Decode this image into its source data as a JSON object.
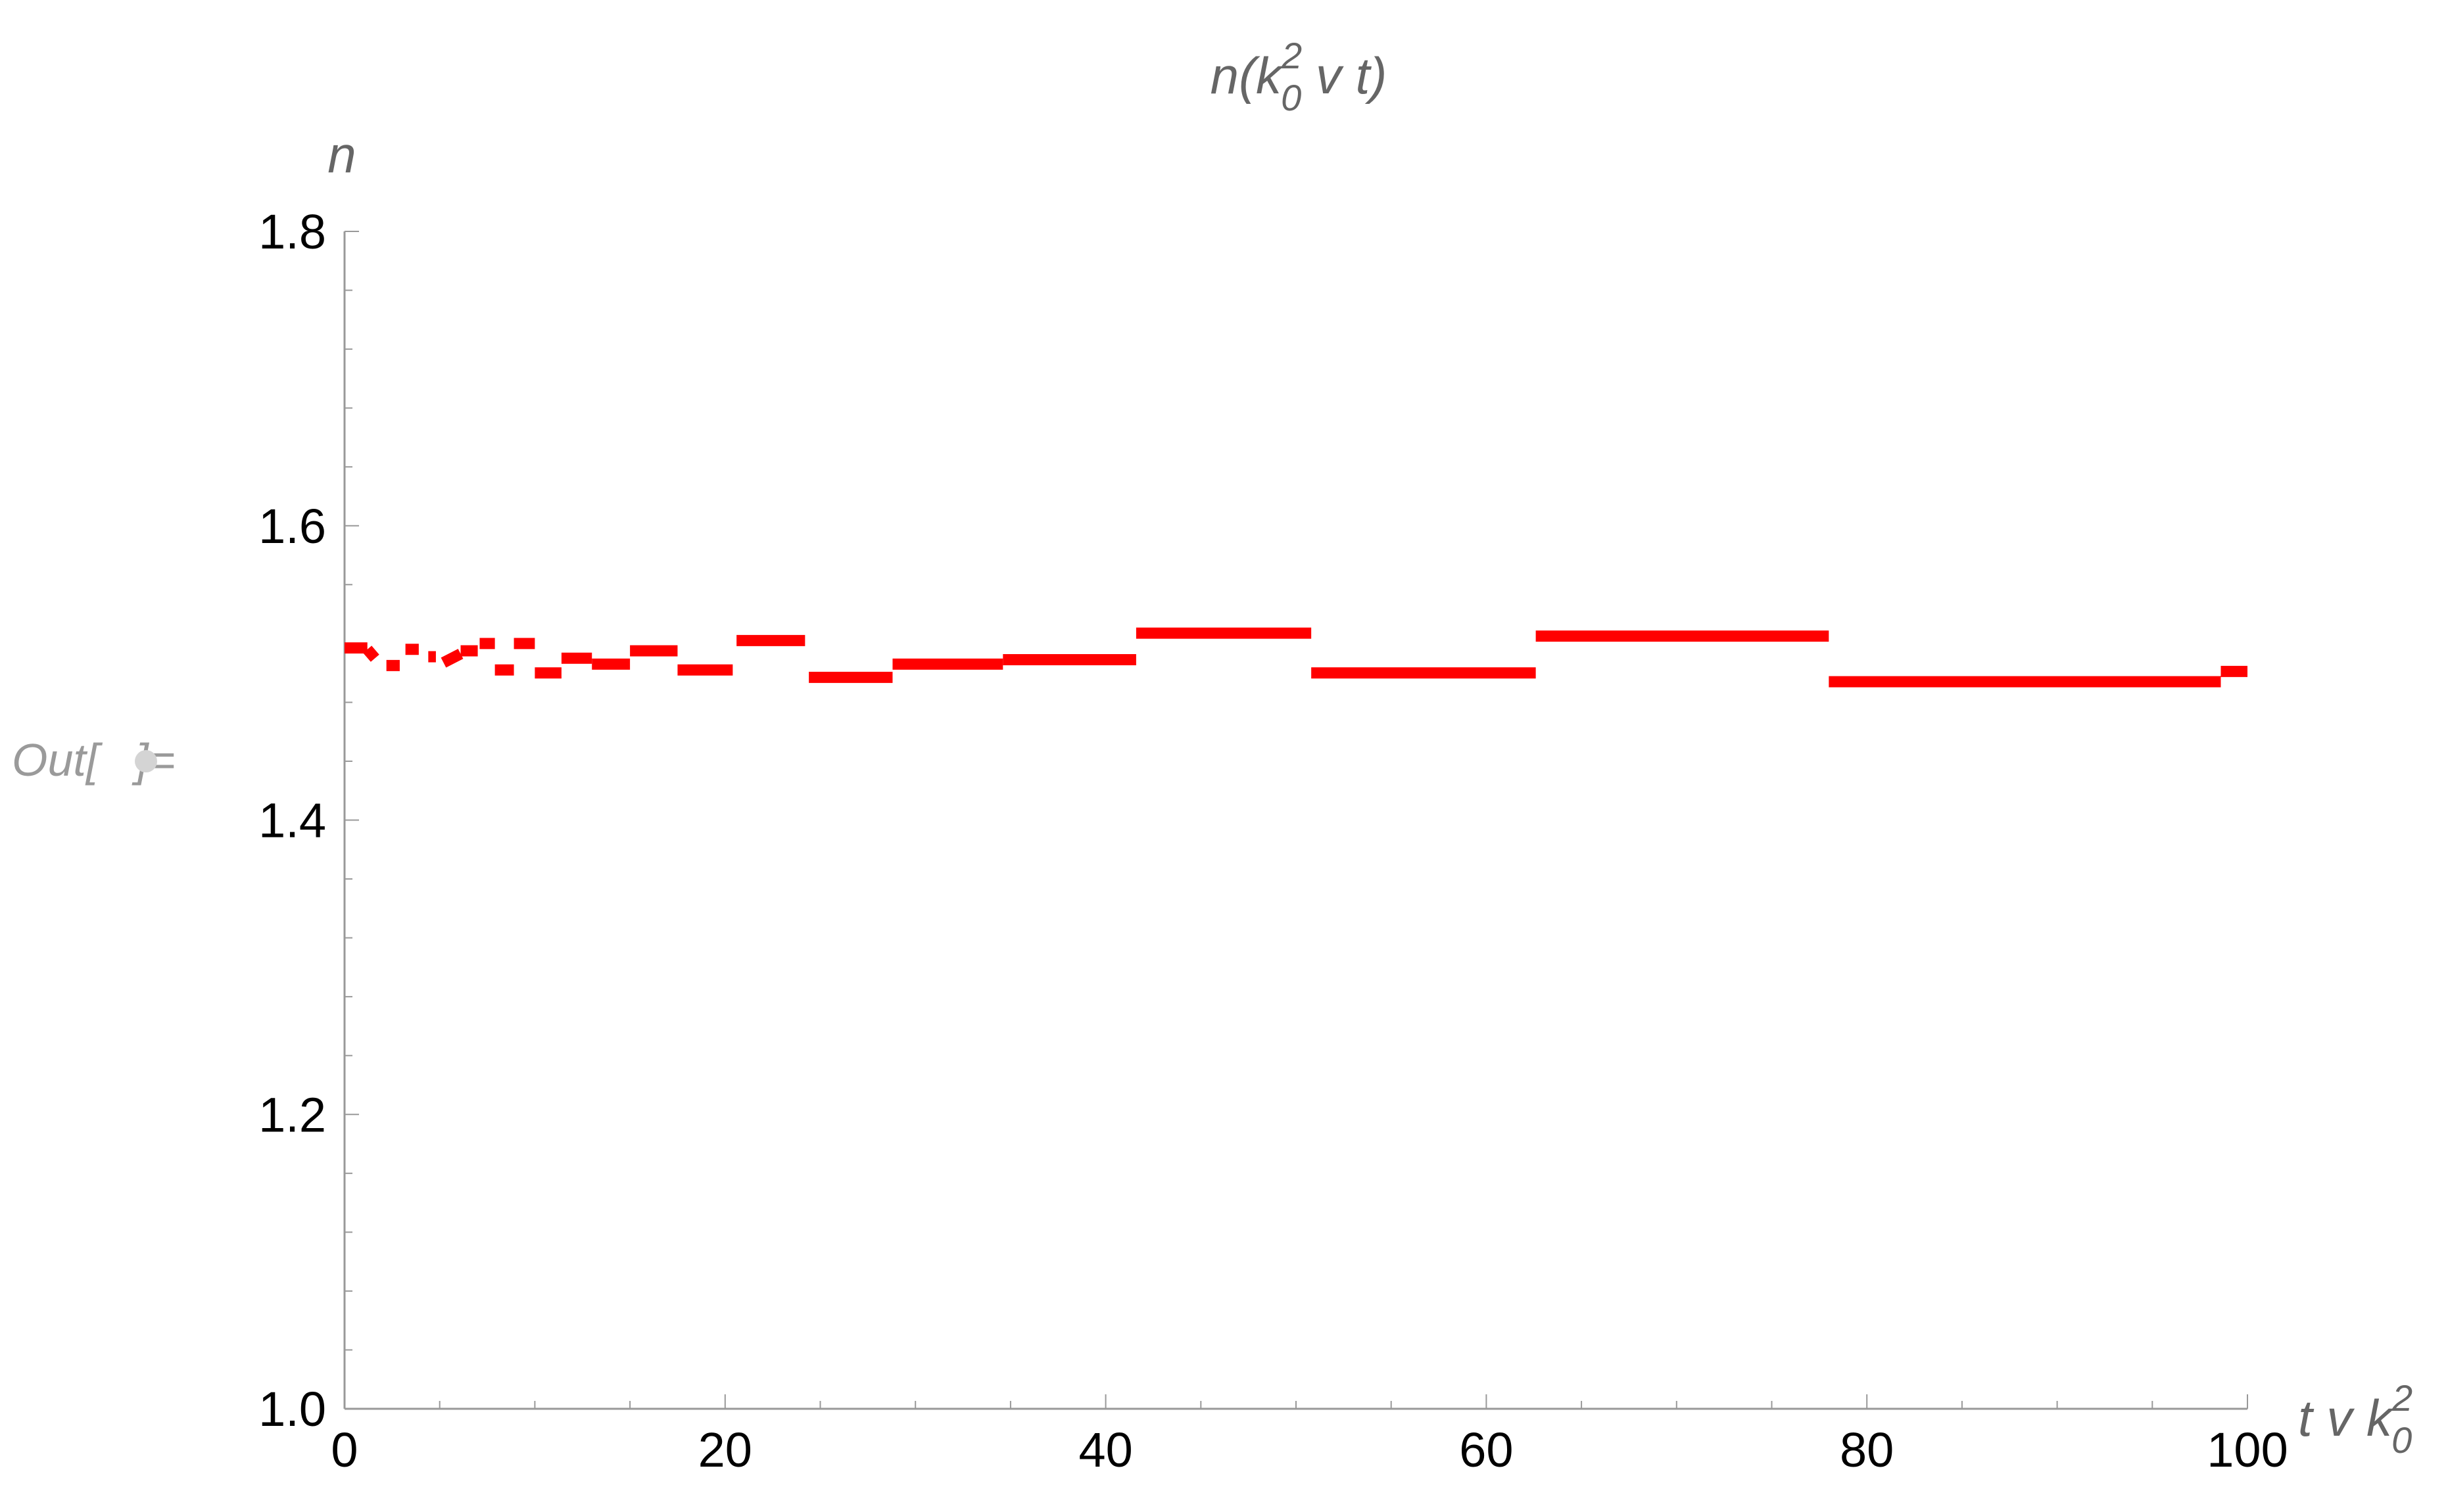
{
  "cell_label": {
    "prefix": "Out[",
    "suffix": "]="
  },
  "chart_data": {
    "type": "line",
    "title": {
      "base": "n(k",
      "sup": "2",
      "sub": "0",
      "rest": " v t)"
    },
    "xlabel": {
      "base": "t v k",
      "sup": "2",
      "sub": "0"
    },
    "ylabel": "n",
    "xlim": [
      0,
      100
    ],
    "ylim": [
      1.0,
      1.8
    ],
    "x_major_ticks": [
      0,
      20,
      40,
      60,
      80,
      100
    ],
    "x_tick_labels": [
      "0",
      "20",
      "40",
      "60",
      "80",
      "100"
    ],
    "y_major_ticks": [
      1.0,
      1.2,
      1.4,
      1.6,
      1.8
    ],
    "y_tick_labels": [
      "1.0",
      "1.2",
      "1.4",
      "1.6",
      "1.8"
    ],
    "x_minor_step": 5,
    "y_minor_step": 0.04,
    "grid": false,
    "series": [
      {
        "color": "#ff0000",
        "segments": [
          {
            "x": [
              0.0,
              1.2
            ],
            "y": [
              1.517,
              1.517
            ]
          },
          {
            "x": [
              1.2,
              1.6
            ],
            "y": [
              1.516,
              1.51
            ]
          },
          {
            "x": [
              2.2,
              2.9
            ],
            "y": [
              1.505,
              1.505
            ]
          },
          {
            "x": [
              3.2,
              3.9
            ],
            "y": [
              1.516,
              1.516
            ]
          },
          {
            "x": [
              4.4,
              4.8
            ],
            "y": [
              1.511,
              1.511
            ]
          },
          {
            "x": [
              5.2,
              6.1
            ],
            "y": [
              1.507,
              1.513
            ]
          },
          {
            "x": [
              6.1,
              7.0
            ],
            "y": [
              1.515,
              1.515
            ]
          },
          {
            "x": [
              7.1,
              7.9
            ],
            "y": [
              1.52,
              1.52
            ]
          },
          {
            "x": [
              7.9,
              8.9
            ],
            "y": [
              1.502,
              1.502
            ]
          },
          {
            "x": [
              8.9,
              10.0
            ],
            "y": [
              1.52,
              1.52
            ]
          },
          {
            "x": [
              10.0,
              11.4
            ],
            "y": [
              1.5,
              1.5
            ]
          },
          {
            "x": [
              11.4,
              13.0
            ],
            "y": [
              1.51,
              1.51
            ]
          },
          {
            "x": [
              13.0,
              15.0
            ],
            "y": [
              1.506,
              1.506
            ]
          },
          {
            "x": [
              15.0,
              17.5
            ],
            "y": [
              1.515,
              1.515
            ]
          },
          {
            "x": [
              17.5,
              20.4
            ],
            "y": [
              1.502,
              1.502
            ]
          },
          {
            "x": [
              20.6,
              24.2
            ],
            "y": [
              1.522,
              1.522
            ]
          },
          {
            "x": [
              24.4,
              28.8
            ],
            "y": [
              1.497,
              1.497
            ]
          },
          {
            "x": [
              28.8,
              34.6
            ],
            "y": [
              1.506,
              1.506
            ]
          },
          {
            "x": [
              34.6,
              41.6
            ],
            "y": [
              1.509,
              1.509
            ]
          },
          {
            "x": [
              41.6,
              50.8
            ],
            "y": [
              1.527,
              1.527
            ]
          },
          {
            "x": [
              50.8,
              62.6
            ],
            "y": [
              1.5,
              1.5
            ]
          },
          {
            "x": [
              62.6,
              78.0
            ],
            "y": [
              1.525,
              1.525
            ]
          },
          {
            "x": [
              78.0,
              98.6
            ],
            "y": [
              1.494,
              1.494
            ]
          },
          {
            "x": [
              98.6,
              100.0
            ],
            "y": [
              1.501,
              1.501
            ]
          }
        ]
      }
    ]
  }
}
